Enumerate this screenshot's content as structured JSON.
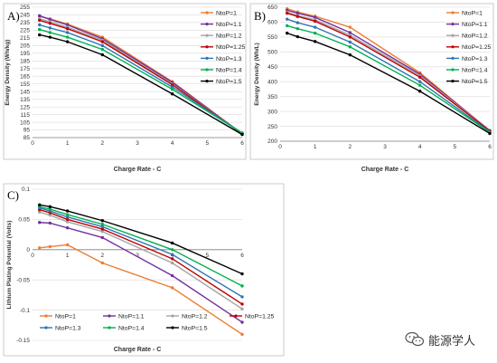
{
  "watermark": {
    "text": "能源学人",
    "icon": "wechat-icon"
  },
  "chart_data": [
    {
      "panel": "A)",
      "type": "line",
      "xlabel": "Charge Rate - C",
      "ylabel": "Energy Density (Wh/kg)",
      "xlim": [
        0,
        6
      ],
      "ylim": [
        85,
        255
      ],
      "xticks": [
        0,
        1,
        2,
        3,
        4,
        5,
        6
      ],
      "yticks": [
        85,
        95,
        105,
        115,
        125,
        135,
        145,
        155,
        165,
        175,
        185,
        195,
        205,
        215,
        225,
        235,
        245,
        255
      ],
      "grid": "horizontal",
      "legend": "right",
      "x": [
        0.2,
        0.5,
        1,
        2,
        4,
        6
      ],
      "series": [
        {
          "name": "NtoP=1",
          "color": "#ED7D31",
          "values": [
            243,
            240,
            233,
            216,
            158,
            90
          ]
        },
        {
          "name": "NtoP=1.1",
          "color": "#7030A0",
          "values": [
            244,
            239,
            232,
            214,
            157,
            90
          ]
        },
        {
          "name": "NtoP=1.2",
          "color": "#A5A5A5",
          "values": [
            240,
            236,
            229,
            212,
            155,
            90
          ]
        },
        {
          "name": "NtoP=1.25",
          "color": "#C00000",
          "values": [
            238,
            234,
            227,
            210,
            154,
            90
          ]
        },
        {
          "name": "NtoP=1.3",
          "color": "#2E75B6",
          "values": [
            232,
            228,
            222,
            205,
            151,
            91
          ]
        },
        {
          "name": "NtoP=1.4",
          "color": "#00B050",
          "values": [
            226,
            222,
            216,
            200,
            148,
            91
          ]
        },
        {
          "name": "NtoP=1.5",
          "color": "#000000",
          "values": [
            219,
            216,
            210,
            193,
            142,
            89
          ]
        }
      ]
    },
    {
      "panel": "B)",
      "type": "line",
      "xlabel": "Charge Rate - C",
      "ylabel": "Energy Density (Wh/L)",
      "xlim": [
        0,
        6
      ],
      "ylim": [
        200,
        650
      ],
      "xticks": [
        0,
        1,
        2,
        3,
        4,
        5,
        6
      ],
      "yticks": [
        200,
        250,
        300,
        350,
        400,
        450,
        500,
        550,
        600,
        650
      ],
      "grid": "horizontal",
      "legend": "right",
      "x": [
        0.2,
        0.5,
        1,
        2,
        4,
        6
      ],
      "series": [
        {
          "name": "NtoP=1",
          "color": "#ED7D31",
          "values": [
            645,
            634,
            620,
            583,
            430,
            235
          ]
        },
        {
          "name": "NtoP=1.1",
          "color": "#7030A0",
          "values": [
            640,
            630,
            616,
            565,
            425,
            236
          ]
        },
        {
          "name": "NtoP=1.2",
          "color": "#A5A5A5",
          "values": [
            633,
            622,
            608,
            556,
            420,
            236
          ]
        },
        {
          "name": "NtoP=1.25",
          "color": "#C00000",
          "values": [
            630,
            619,
            603,
            550,
            415,
            235
          ]
        },
        {
          "name": "NtoP=1.3",
          "color": "#2E75B6",
          "values": [
            610,
            598,
            583,
            533,
            400,
            232
          ]
        },
        {
          "name": "NtoP=1.4",
          "color": "#00B050",
          "values": [
            588,
            578,
            563,
            517,
            388,
            230
          ]
        },
        {
          "name": "NtoP=1.5",
          "color": "#000000",
          "values": [
            563,
            551,
            535,
            490,
            368,
            226
          ]
        }
      ]
    },
    {
      "panel": "C)",
      "type": "line",
      "xlabel": "Charge Rate - C",
      "ylabel": "Lithium Plating Potential (Volts)",
      "xlim": [
        0,
        6
      ],
      "ylim": [
        -0.15,
        0.1
      ],
      "xticks": [
        0,
        1,
        2,
        3,
        4,
        5,
        6
      ],
      "ytick_values": [
        0.1,
        0.05,
        0,
        -0.05,
        -0.1,
        -0.15
      ],
      "ytick_labels": [
        "0.1",
        "0.05",
        "0",
        "-0.05",
        "-0.1",
        "-0.15"
      ],
      "grid": "horizontal",
      "legend": "bottom",
      "x": [
        0.2,
        0.5,
        1,
        2,
        4,
        6
      ],
      "series": [
        {
          "name": "NtoP=1",
          "color": "#ED7D31",
          "values": [
            0.003,
            0.005,
            0.008,
            -0.022,
            -0.063,
            -0.14
          ]
        },
        {
          "name": "NtoP=1.1",
          "color": "#7030A0",
          "values": [
            0.045,
            0.044,
            0.036,
            0.02,
            -0.043,
            -0.12
          ]
        },
        {
          "name": "NtoP=1.2",
          "color": "#A5A5A5",
          "values": [
            0.062,
            0.057,
            0.046,
            0.03,
            -0.022,
            -0.098
          ]
        },
        {
          "name": "NtoP=1.25",
          "color": "#C00000",
          "values": [
            0.066,
            0.061,
            0.05,
            0.034,
            -0.015,
            -0.09
          ]
        },
        {
          "name": "NtoP=1.3",
          "color": "#2E75B6",
          "values": [
            0.069,
            0.064,
            0.054,
            0.038,
            -0.008,
            -0.078
          ]
        },
        {
          "name": "NtoP=1.4",
          "color": "#00B050",
          "values": [
            0.071,
            0.067,
            0.058,
            0.042,
            0.0,
            -0.06
          ]
        },
        {
          "name": "NtoP=1.5",
          "color": "#000000",
          "values": [
            0.074,
            0.071,
            0.064,
            0.048,
            0.011,
            -0.04
          ]
        }
      ]
    }
  ]
}
